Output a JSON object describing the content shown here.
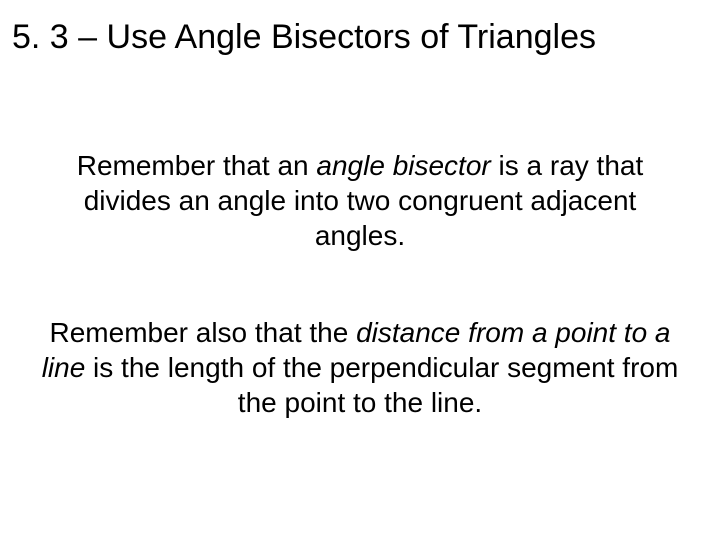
{
  "title_fontsize": 34,
  "body_fontsize": 28,
  "background_color": "#ffffff",
  "text_color": "#000000",
  "font_family": "Arial",
  "title": "5. 3 – Use Angle Bisectors of Triangles",
  "para1": {
    "pre": "Remember that an ",
    "em": "angle bisector",
    "post": " is a ray that divides an angle into two congruent adjacent angles."
  },
  "para2": {
    "pre": "Remember also that the ",
    "em": "distance from a point to a line",
    "post": " is the length of the perpendicular segment from the point to the line."
  }
}
